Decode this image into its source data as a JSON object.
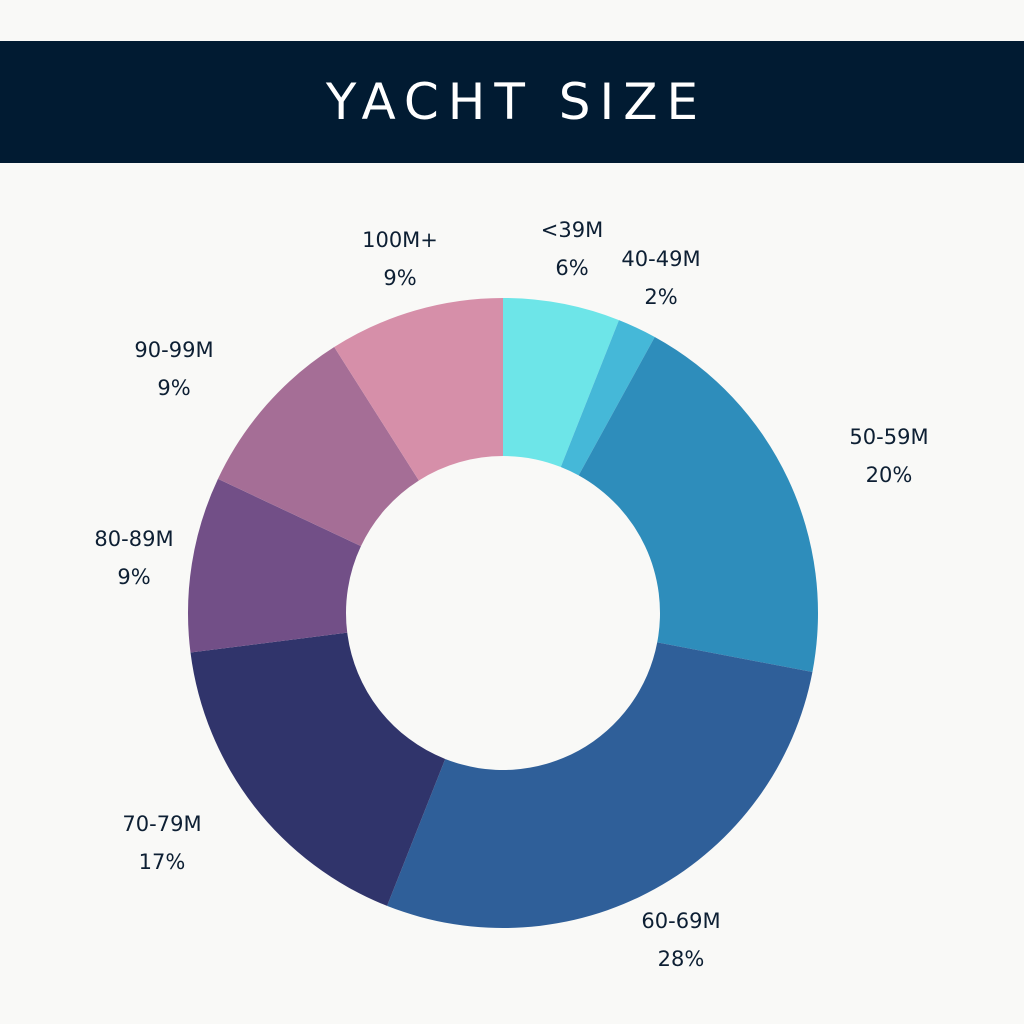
{
  "chart_data": {
    "type": "pie",
    "variant": "donut",
    "title": "YACHT SIZE",
    "categories": [
      "<39M",
      "40-49M",
      "50-59M",
      "60-69M",
      "70-79M",
      "80-89M",
      "90-99M",
      "100M+"
    ],
    "values": [
      6,
      2,
      20,
      28,
      17,
      9,
      9,
      9
    ],
    "value_labels": [
      "6%",
      "2%",
      "20%",
      "28%",
      "17%",
      "9%",
      "9%",
      "9%"
    ],
    "colors": [
      "#6de5e8",
      "#45b8d8",
      "#2e8dbb",
      "#2f5f99",
      "#30346b",
      "#724f87",
      "#a56e96",
      "#d68fa9"
    ],
    "legend": "none"
  }
}
